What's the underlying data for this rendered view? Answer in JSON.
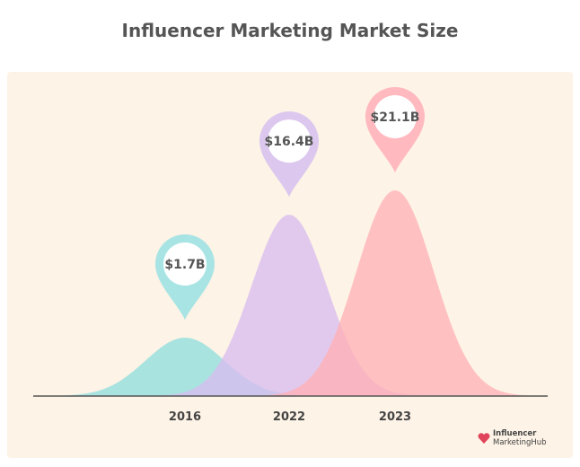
{
  "chart_data": {
    "type": "area",
    "title": "Influencer Marketing Market Size",
    "categories": [
      "2016",
      "2022",
      "2023"
    ],
    "values": [
      1.7,
      16.4,
      21.1
    ],
    "value_labels": [
      "$1.7B",
      "$16.4B",
      "$21.1B"
    ],
    "unit": "billion USD",
    "colors": [
      "#8fdede",
      "#d8bdf0",
      "#ffb1b6"
    ],
    "pin_colors": [
      "#a8e4e4",
      "#dcc8ee",
      "#ffb9bf"
    ],
    "background": "#fdf3e6",
    "axis_color": "#555555",
    "grid": false
  },
  "branding": {
    "logo_line1": "Influencer",
    "logo_line2": "MarketingHub",
    "logo_color": "#e0445a"
  }
}
